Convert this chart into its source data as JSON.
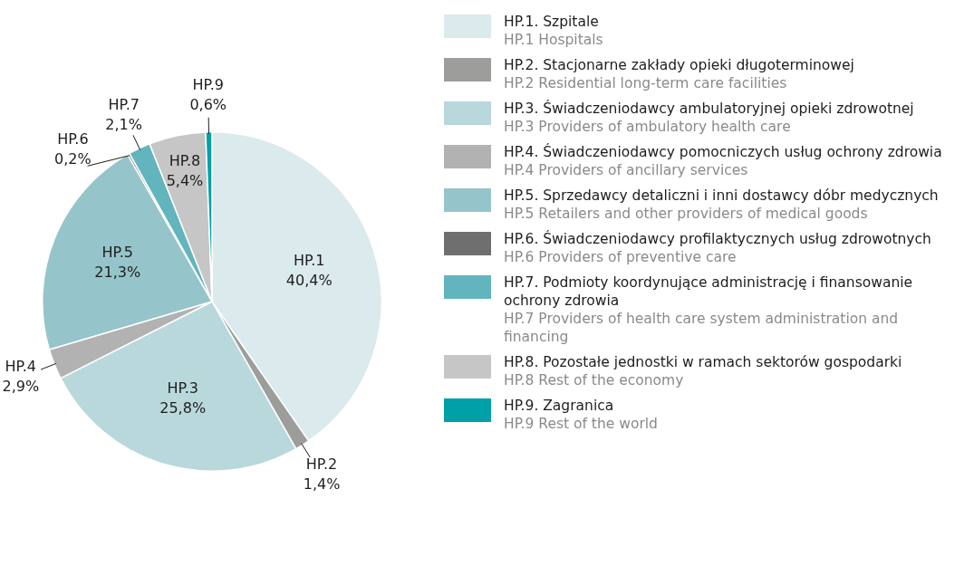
{
  "chart_data": {
    "type": "pie",
    "categories": [
      "HP.1. Szpitale\nHP.1 Hospitals",
      "HP.2. Stacjonarne zakłady opieki  długoterminowej\nHP.2 Residential long-term care facilities",
      "HP.3. Świadczeniodawcy ambulatoryjnej opieki zdrowotnej\nHP.3 Providers of ambulatory health care",
      "HP.4. Świadczeniodawcy pomocniczych usług ochrony zdrowia\nHP.4 Providers of ancillary services",
      "HP.5. Sprzedawcy detaliczni i inni dostawcy dóbr medycznych\nHP.5 Retailers and other providers of medical goods",
      "HP.6. Świadczeniodawcy profilaktycznych usług zdrowotnych\nHP.6 Providers of preventive care",
      "HP.7. Podmioty koordynujące administrację i finansowanie ochrony zdrowia\nHP.7 Providers of health care system administration and financing",
      "HP.8. Pozostałe jednostki w ramach sektorów gospodarki\nHP.8 Rest of the economy",
      "HP.9. Zagranica\nHP.9 Rest of the world"
    ],
    "values": [
      40.4,
      1.4,
      25.8,
      2.9,
      21.3,
      0.2,
      2.1,
      5.4,
      0.6
    ],
    "value_labels": [
      "HP.1\n40,4%",
      "HP.2\n1,4%",
      "HP.3\n25,8%",
      "HP.4\n2,9%",
      "HP.5\n21,3%",
      "HP.6\n0,2%",
      "HP.7\n2,1%",
      "HP.8\n5,4%",
      "HP.9\n0,6%"
    ],
    "colors": [
      "#dbeaec",
      "#9d9d9c",
      "#b9d8dc",
      "#b2b2b2",
      "#95c5cb",
      "#706f6f",
      "#62b5bd",
      "#c6c6c6",
      "#00a0a8"
    ],
    "legend": "right"
  }
}
